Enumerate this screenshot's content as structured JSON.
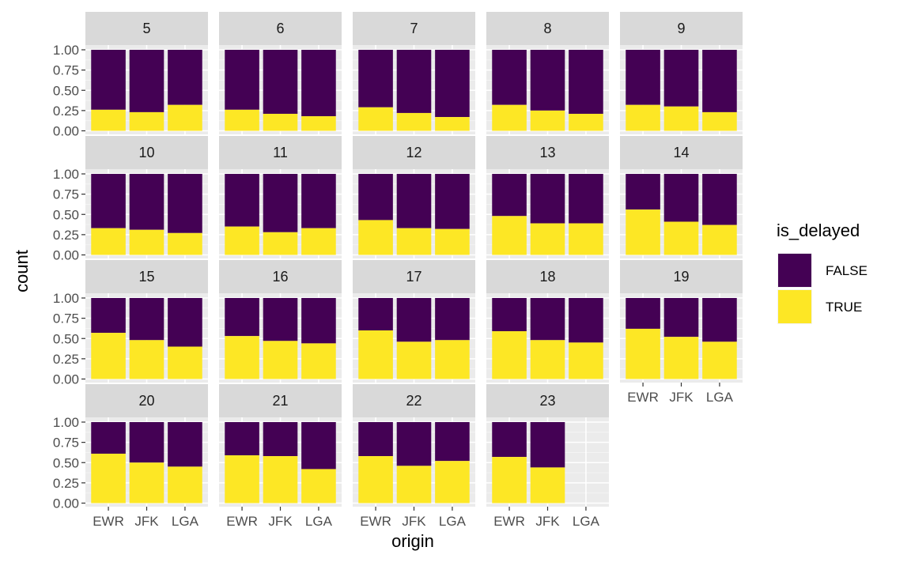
{
  "chart_data": {
    "type": "bar",
    "stacking": "fill",
    "facet_var": "hour",
    "facets": [
      "5",
      "6",
      "7",
      "8",
      "9",
      "10",
      "11",
      "12",
      "13",
      "14",
      "15",
      "16",
      "17",
      "18",
      "19",
      "20",
      "21",
      "22",
      "23"
    ],
    "categories": [
      "EWR",
      "JFK",
      "LGA"
    ],
    "xlabel": "origin",
    "ylabel": "count",
    "ylim": [
      0,
      1
    ],
    "yticks": [
      "0.00",
      "0.25",
      "0.50",
      "0.75",
      "1.00"
    ],
    "legend": {
      "title": "is_delayed",
      "placement": "right",
      "entries": [
        {
          "label": "FALSE",
          "color": "#440154"
        },
        {
          "label": "TRUE",
          "color": "#FDE725"
        }
      ]
    },
    "true_share": [
      [
        0.26,
        0.23,
        0.32
      ],
      [
        0.26,
        0.21,
        0.18
      ],
      [
        0.29,
        0.22,
        0.17
      ],
      [
        0.32,
        0.25,
        0.21
      ],
      [
        0.32,
        0.3,
        0.23
      ],
      [
        0.33,
        0.31,
        0.27
      ],
      [
        0.35,
        0.28,
        0.33
      ],
      [
        0.43,
        0.33,
        0.32
      ],
      [
        0.48,
        0.39,
        0.39
      ],
      [
        0.56,
        0.41,
        0.37
      ],
      [
        0.57,
        0.48,
        0.4
      ],
      [
        0.53,
        0.47,
        0.44
      ],
      [
        0.6,
        0.46,
        0.48
      ],
      [
        0.59,
        0.48,
        0.45
      ],
      [
        0.62,
        0.52,
        0.46
      ],
      [
        0.61,
        0.5,
        0.45
      ],
      [
        0.59,
        0.58,
        0.42
      ],
      [
        0.58,
        0.46,
        0.52
      ],
      [
        0.57,
        0.44,
        null
      ]
    ]
  }
}
